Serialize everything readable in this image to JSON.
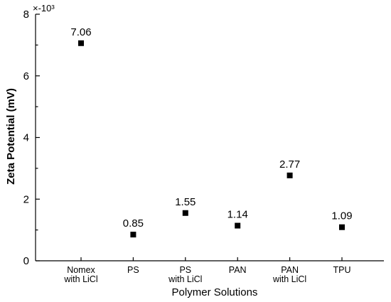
{
  "chart_data": {
    "type": "scatter",
    "categories": [
      [
        "Nomex",
        "with LiCl"
      ],
      [
        "PS"
      ],
      [
        "PS",
        "with LiCl"
      ],
      [
        "PAN"
      ],
      [
        "PAN",
        "with LiCl"
      ],
      [
        "TPU"
      ]
    ],
    "values": [
      7.06,
      0.85,
      1.55,
      1.14,
      2.77,
      1.09
    ],
    "data_labels": [
      "7.06",
      "0.85",
      "1.55",
      "1.14",
      "2.77",
      "1.09"
    ],
    "xlabel": "Polymer Solutions",
    "ylabel": "Zeta Potential (mV)",
    "y_multiplier": "×-10³",
    "ylim": [
      0,
      8
    ],
    "yticks": [
      "0",
      "2",
      "4",
      "6",
      "8"
    ],
    "grid": false,
    "marker": "square",
    "color": "#000000"
  }
}
